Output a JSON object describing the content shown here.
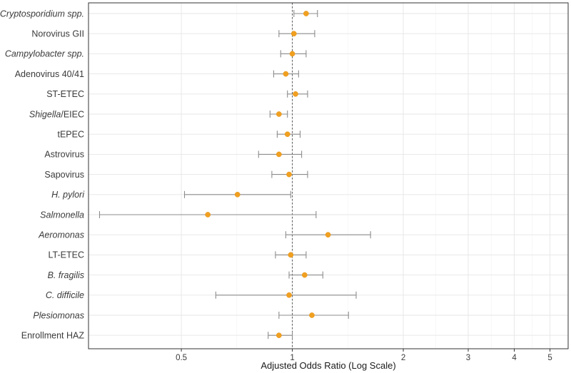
{
  "chart_data": {
    "type": "scatter",
    "subtype": "forest-plot",
    "xlabel": "Adjusted Odds Ratio (Log Scale)",
    "x_scale": "log",
    "xlim": [
      0.28,
      5.6
    ],
    "x_ticks": [
      0.5,
      1,
      2,
      3,
      4,
      5
    ],
    "x_tick_labels": [
      "0.5",
      "1",
      "2",
      "3",
      "4",
      "5"
    ],
    "reference_line": 1,
    "grid": true,
    "point_color": "#F0A020",
    "ci_color": "#8C8C8C",
    "rows": [
      {
        "label": "Cryptosporidium spp.",
        "italic_text": "Cryptosporidium spp.",
        "plain_text": "",
        "estimate": 1.09,
        "lower": 1.01,
        "upper": 1.17
      },
      {
        "label": "Norovirus GII",
        "italic_text": "",
        "plain_text": "Norovirus GII",
        "estimate": 1.01,
        "lower": 0.92,
        "upper": 1.15
      },
      {
        "label": "Campylobacter spp.",
        "italic_text": "Campylobacter spp.",
        "plain_text": "",
        "estimate": 1.0,
        "lower": 0.93,
        "upper": 1.09
      },
      {
        "label": "Adenovirus 40/41",
        "italic_text": "",
        "plain_text": "Adenovirus 40/41",
        "estimate": 0.96,
        "lower": 0.89,
        "upper": 1.04
      },
      {
        "label": "ST-ETEC",
        "italic_text": "",
        "plain_text": "ST-ETEC",
        "estimate": 1.02,
        "lower": 0.97,
        "upper": 1.1
      },
      {
        "label": "Shigella/EIEC",
        "italic_text": "Shigella",
        "plain_text": "/EIEC",
        "estimate": 0.92,
        "lower": 0.87,
        "upper": 0.97
      },
      {
        "label": "tEPEC",
        "italic_text": "",
        "plain_text": "tEPEC",
        "estimate": 0.97,
        "lower": 0.91,
        "upper": 1.05
      },
      {
        "label": "Astrovirus",
        "italic_text": "",
        "plain_text": "Astrovirus",
        "estimate": 0.92,
        "lower": 0.81,
        "upper": 1.06
      },
      {
        "label": "Sapovirus",
        "italic_text": "",
        "plain_text": "Sapovirus",
        "estimate": 0.98,
        "lower": 0.88,
        "upper": 1.1
      },
      {
        "label": "H. pylori",
        "italic_text": "H. pylori",
        "plain_text": "",
        "estimate": 0.71,
        "lower": 0.51,
        "upper": 0.99
      },
      {
        "label": "Salmonella",
        "italic_text": "Salmonella",
        "plain_text": "",
        "estimate": 0.59,
        "lower": 0.3,
        "upper": 1.16
      },
      {
        "label": "Aeromonas",
        "italic_text": "Aeromonas",
        "plain_text": "",
        "estimate": 1.25,
        "lower": 0.96,
        "upper": 1.63
      },
      {
        "label": "LT-ETEC",
        "italic_text": "",
        "plain_text": "LT-ETEC",
        "estimate": 0.99,
        "lower": 0.9,
        "upper": 1.09
      },
      {
        "label": "B. fragilis",
        "italic_text": "B. fragilis",
        "plain_text": "",
        "estimate": 1.08,
        "lower": 0.98,
        "upper": 1.21
      },
      {
        "label": "C. difficile",
        "italic_text": "C. difficile",
        "plain_text": "",
        "estimate": 0.98,
        "lower": 0.62,
        "upper": 1.49
      },
      {
        "label": "Plesiomonas",
        "italic_text": "Plesiomonas",
        "plain_text": "",
        "estimate": 1.13,
        "lower": 0.92,
        "upper": 1.42
      },
      {
        "label": "Enrollment HAZ",
        "italic_text": "",
        "plain_text": "Enrollment HAZ",
        "estimate": 0.92,
        "lower": 0.86,
        "upper": 1.0
      }
    ]
  }
}
